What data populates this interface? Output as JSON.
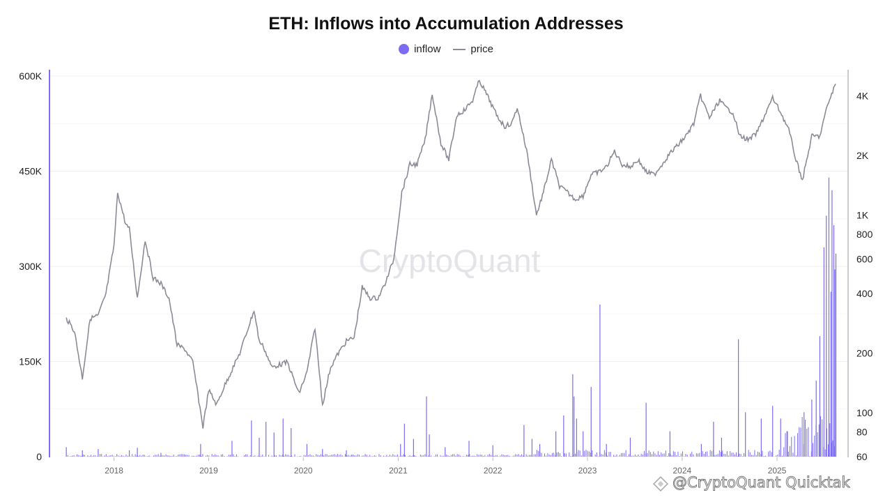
{
  "chart_data": {
    "type": "bar+line",
    "title": "ETH: Inflows into Accumulation Addresses",
    "legend": {
      "position": "top-center",
      "items": [
        {
          "name": "inflow",
          "marker": "dot",
          "color": "#7b6cf2"
        },
        {
          "name": "price",
          "marker": "line",
          "color": "#8c8a96"
        }
      ]
    },
    "x_axis": {
      "start": "2017-06",
      "end": "2025-08",
      "ticks": [
        "2018",
        "2019",
        "2020",
        "2021",
        "2022",
        "2023",
        "2024",
        "2025"
      ]
    },
    "y_left": {
      "ticks": [
        "0",
        "150K",
        "300K",
        "450K",
        "600K"
      ],
      "range": [
        0,
        600000
      ]
    },
    "y_right": {
      "scale": "log",
      "ticks": [
        "60",
        "80",
        "100",
        "200",
        "400",
        "600",
        "800",
        "1K",
        "2K",
        "4K"
      ],
      "range": [
        60,
        5000
      ]
    },
    "series": [
      {
        "name": "price",
        "type": "line",
        "color": "#8c8a96",
        "points": [
          [
            "2017-07-01",
            300
          ],
          [
            "2017-08-01",
            260
          ],
          [
            "2017-09-01",
            150
          ],
          [
            "2017-10-01",
            300
          ],
          [
            "2017-11-01",
            310
          ],
          [
            "2017-12-01",
            400
          ],
          [
            "2018-01-01",
            700
          ],
          [
            "2018-01-15",
            1300
          ],
          [
            "2018-02-15",
            900
          ],
          [
            "2018-03-01",
            850
          ],
          [
            "2018-04-01",
            380
          ],
          [
            "2018-05-01",
            750
          ],
          [
            "2018-06-01",
            480
          ],
          [
            "2018-07-01",
            450
          ],
          [
            "2018-08-01",
            380
          ],
          [
            "2018-09-01",
            220
          ],
          [
            "2018-10-01",
            210
          ],
          [
            "2018-11-01",
            180
          ],
          [
            "2018-12-10",
            85
          ],
          [
            "2019-01-01",
            130
          ],
          [
            "2019-02-01",
            110
          ],
          [
            "2019-03-01",
            135
          ],
          [
            "2019-04-01",
            165
          ],
          [
            "2019-05-01",
            200
          ],
          [
            "2019-06-25",
            330
          ],
          [
            "2019-07-15",
            230
          ],
          [
            "2019-08-01",
            215
          ],
          [
            "2019-09-01",
            170
          ],
          [
            "2019-10-01",
            175
          ],
          [
            "2019-11-01",
            180
          ],
          [
            "2019-12-15",
            125
          ],
          [
            "2020-01-15",
            160
          ],
          [
            "2020-02-15",
            270
          ],
          [
            "2020-03-15",
            110
          ],
          [
            "2020-04-15",
            170
          ],
          [
            "2020-05-15",
            200
          ],
          [
            "2020-06-15",
            230
          ],
          [
            "2020-07-15",
            240
          ],
          [
            "2020-08-15",
            430
          ],
          [
            "2020-09-15",
            380
          ],
          [
            "2020-10-15",
            380
          ],
          [
            "2020-11-15",
            460
          ],
          [
            "2020-12-15",
            600
          ],
          [
            "2021-01-15",
            1300
          ],
          [
            "2021-02-15",
            1800
          ],
          [
            "2021-03-15",
            1800
          ],
          [
            "2021-04-15",
            2400
          ],
          [
            "2021-05-12",
            4100
          ],
          [
            "2021-06-15",
            2300
          ],
          [
            "2021-07-15",
            1900
          ],
          [
            "2021-08-15",
            3200
          ],
          [
            "2021-09-15",
            3400
          ],
          [
            "2021-10-15",
            3800
          ],
          [
            "2021-11-10",
            4800
          ],
          [
            "2021-12-15",
            3900
          ],
          [
            "2022-01-15",
            3200
          ],
          [
            "2022-02-15",
            2800
          ],
          [
            "2022-03-15",
            2900
          ],
          [
            "2022-04-05",
            3500
          ],
          [
            "2022-05-15",
            2000
          ],
          [
            "2022-06-18",
            1000
          ],
          [
            "2022-07-15",
            1300
          ],
          [
            "2022-08-15",
            1900
          ],
          [
            "2022-09-15",
            1400
          ],
          [
            "2022-10-15",
            1300
          ],
          [
            "2022-11-15",
            1200
          ],
          [
            "2022-12-15",
            1250
          ],
          [
            "2023-01-15",
            1600
          ],
          [
            "2023-02-15",
            1650
          ],
          [
            "2023-03-15",
            1750
          ],
          [
            "2023-04-15",
            2100
          ],
          [
            "2023-05-15",
            1800
          ],
          [
            "2023-06-15",
            1750
          ],
          [
            "2023-07-15",
            1900
          ],
          [
            "2023-08-15",
            1650
          ],
          [
            "2023-09-15",
            1600
          ],
          [
            "2023-10-15",
            1800
          ],
          [
            "2023-11-15",
            2050
          ],
          [
            "2023-12-15",
            2250
          ],
          [
            "2024-01-15",
            2500
          ],
          [
            "2024-02-15",
            2900
          ],
          [
            "2024-03-12",
            4000
          ],
          [
            "2024-04-15",
            3100
          ],
          [
            "2024-05-25",
            3800
          ],
          [
            "2024-06-15",
            3500
          ],
          [
            "2024-07-15",
            3300
          ],
          [
            "2024-08-10",
            2500
          ],
          [
            "2024-09-15",
            2400
          ],
          [
            "2024-10-15",
            2600
          ],
          [
            "2024-11-15",
            3200
          ],
          [
            "2024-12-15",
            3900
          ],
          [
            "2025-01-15",
            3300
          ],
          [
            "2025-02-15",
            2700
          ],
          [
            "2025-03-15",
            1900
          ],
          [
            "2025-04-09",
            1500
          ],
          [
            "2025-05-15",
            2500
          ],
          [
            "2025-06-15",
            2500
          ],
          [
            "2025-07-15",
            3600
          ],
          [
            "2025-08-15",
            4600
          ]
        ]
      },
      {
        "name": "inflow",
        "type": "bar",
        "color": "#7b6cf2",
        "bars": [
          [
            "2017-07-01",
            15000
          ],
          [
            "2017-09-01",
            10000
          ],
          [
            "2017-11-01",
            12000
          ],
          [
            "2018-03-01",
            10000
          ],
          [
            "2018-04-01",
            14000
          ],
          [
            "2018-07-01",
            6000
          ],
          [
            "2018-12-01",
            20000
          ],
          [
            "2019-04-01",
            25000
          ],
          [
            "2019-06-15",
            57000
          ],
          [
            "2019-07-15",
            30000
          ],
          [
            "2019-08-10",
            55000
          ],
          [
            "2019-09-10",
            38000
          ],
          [
            "2019-10-15",
            60000
          ],
          [
            "2019-11-15",
            45000
          ],
          [
            "2020-01-15",
            20000
          ],
          [
            "2020-03-15",
            12000
          ],
          [
            "2020-06-15",
            10000
          ],
          [
            "2021-01-10",
            20000
          ],
          [
            "2021-01-25",
            52000
          ],
          [
            "2021-03-01",
            28000
          ],
          [
            "2021-04-20",
            95000
          ],
          [
            "2021-05-01",
            35000
          ],
          [
            "2021-07-01",
            15000
          ],
          [
            "2021-10-01",
            25000
          ],
          [
            "2022-01-01",
            18000
          ],
          [
            "2022-05-01",
            50000
          ],
          [
            "2022-06-01",
            28000
          ],
          [
            "2022-07-01",
            20000
          ],
          [
            "2022-09-01",
            40000
          ],
          [
            "2022-10-01",
            65000
          ],
          [
            "2022-11-05",
            130000
          ],
          [
            "2022-11-10",
            95000
          ],
          [
            "2022-11-20",
            60000
          ],
          [
            "2022-12-15",
            40000
          ],
          [
            "2023-01-15",
            110000
          ],
          [
            "2023-02-18",
            240000
          ],
          [
            "2023-03-15",
            20000
          ],
          [
            "2023-06-15",
            30000
          ],
          [
            "2023-08-15",
            85000
          ],
          [
            "2023-11-15",
            40000
          ],
          [
            "2024-03-15",
            20000
          ],
          [
            "2024-05-01",
            55000
          ],
          [
            "2024-06-01",
            30000
          ],
          [
            "2024-08-05",
            185000
          ],
          [
            "2024-09-01",
            70000
          ],
          [
            "2024-11-01",
            60000
          ],
          [
            "2024-12-15",
            80000
          ],
          [
            "2025-01-15",
            60000
          ],
          [
            "2025-02-10",
            40000
          ],
          [
            "2025-04-15",
            70000
          ],
          [
            "2025-05-15",
            90000
          ],
          [
            "2025-06-01",
            120000
          ],
          [
            "2025-06-15",
            190000
          ],
          [
            "2025-07-01",
            330000
          ],
          [
            "2025-07-10",
            380000
          ],
          [
            "2025-07-20",
            440000
          ],
          [
            "2025-07-28",
            260000
          ],
          [
            "2025-08-01",
            420000
          ],
          [
            "2025-08-08",
            365000
          ],
          [
            "2025-08-12",
            295000
          ],
          [
            "2025-08-16",
            320000
          ]
        ]
      }
    ]
  },
  "watermark": "CryptoQuant",
  "credit": "@CryptoQuant Quicktak"
}
